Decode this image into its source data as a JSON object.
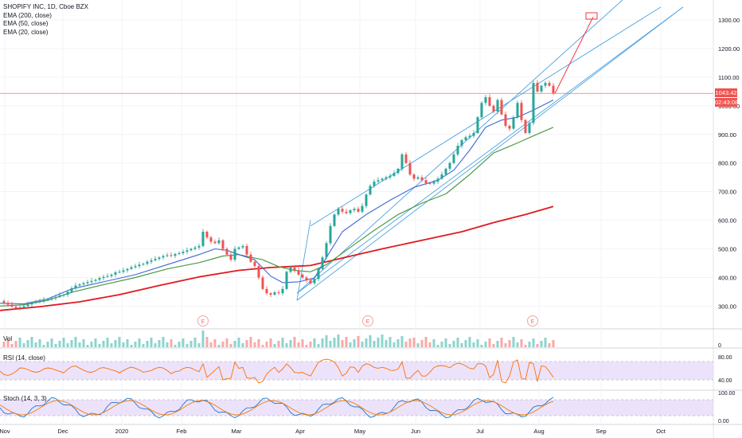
{
  "legend": {
    "symbol": "SHOPIFY INC, 1D, Cboe BZX",
    "ema200": "EMA (200, close)",
    "ema50": "EMA (50, close)",
    "ema20": "EMA (20, close)"
  },
  "price_tag": "1043.42",
  "countdown_tag": "02:43:08",
  "earnings_marker": "E",
  "panes": {
    "vol": "Vol",
    "rsi": "RSI (14, close)",
    "stoch": "Stoch (14, 3, 3)"
  },
  "colors": {
    "up": "#26a69a",
    "down": "#ef5350",
    "ema200": "#e0191f",
    "ema50": "#4c9a45",
    "ema20": "#3f66d6",
    "channel": "#4ea3de",
    "forecast": "#f23645",
    "rsi": "#ff6d00",
    "band": "#d9c8f7",
    "stoch_k": "#1f77d0",
    "stoch_d": "#f57c00"
  },
  "chart_data": {
    "type": "candlestick",
    "title": "SHOPIFY INC, 1D, Cboe BZX",
    "x": [
      "Nov",
      "Dec",
      "2020",
      "Feb",
      "Mar",
      "Apr",
      "May",
      "Jun",
      "Jul",
      "Aug",
      "Sep",
      "Oct"
    ],
    "y_ticks": [
      "1300.00",
      "1200.00",
      "1100.00",
      "1000.00",
      "900.00",
      "800.00",
      "700.00",
      "600.00",
      "500.00",
      "400.00",
      "300.00"
    ],
    "ylim": [
      235,
      1345
    ],
    "last_price": 1043.42,
    "price_path": [
      [
        0,
        318
      ],
      [
        5,
        312
      ],
      [
        10,
        305
      ],
      [
        15,
        298
      ],
      [
        20,
        293
      ],
      [
        25,
        296
      ],
      [
        30,
        300
      ],
      [
        35,
        306
      ],
      [
        40,
        312
      ],
      [
        45,
        316
      ],
      [
        50,
        318
      ],
      [
        55,
        322
      ],
      [
        60,
        325
      ],
      [
        65,
        328
      ],
      [
        70,
        332
      ],
      [
        75,
        338
      ],
      [
        80,
        340
      ],
      [
        85,
        350
      ],
      [
        90,
        362
      ],
      [
        95,
        372
      ],
      [
        100,
        376
      ],
      [
        105,
        380
      ],
      [
        110,
        384
      ],
      [
        115,
        388
      ],
      [
        120,
        392
      ],
      [
        125,
        398
      ],
      [
        130,
        402
      ],
      [
        135,
        405
      ],
      [
        140,
        410
      ],
      [
        145,
        418
      ],
      [
        150,
        420
      ],
      [
        155,
        425
      ],
      [
        160,
        430
      ],
      [
        165,
        436
      ],
      [
        170,
        440
      ],
      [
        175,
        445
      ],
      [
        180,
        448
      ],
      [
        185,
        455
      ],
      [
        190,
        460
      ],
      [
        195,
        465
      ],
      [
        200,
        470
      ],
      [
        205,
        475
      ],
      [
        210,
        478
      ],
      [
        215,
        476
      ],
      [
        220,
        482
      ],
      [
        225,
        485
      ],
      [
        230,
        490
      ],
      [
        235,
        495
      ],
      [
        240,
        500
      ],
      [
        245,
        505
      ],
      [
        250,
        510
      ],
      [
        255,
        560
      ],
      [
        260,
        540
      ],
      [
        265,
        525
      ],
      [
        270,
        520
      ],
      [
        275,
        530
      ],
      [
        280,
        500
      ],
      [
        285,
        480
      ],
      [
        290,
        462
      ],
      [
        295,
        500
      ],
      [
        300,
        505
      ],
      [
        305,
        510
      ],
      [
        310,
        480
      ],
      [
        315,
        455
      ],
      [
        320,
        440
      ],
      [
        325,
        400
      ],
      [
        330,
        360
      ],
      [
        335,
        345
      ],
      [
        340,
        340
      ],
      [
        345,
        348
      ],
      [
        350,
        345
      ],
      [
        355,
        360
      ],
      [
        360,
        420
      ],
      [
        365,
        435
      ],
      [
        370,
        425
      ],
      [
        375,
        410
      ],
      [
        380,
        400
      ],
      [
        385,
        390
      ],
      [
        390,
        380
      ],
      [
        395,
        395
      ],
      [
        400,
        430
      ],
      [
        405,
        470
      ],
      [
        410,
        520
      ],
      [
        415,
        580
      ],
      [
        420,
        620
      ],
      [
        425,
        640
      ],
      [
        430,
        630
      ],
      [
        435,
        625
      ],
      [
        440,
        635
      ],
      [
        445,
        640
      ],
      [
        450,
        630
      ],
      [
        455,
        650
      ],
      [
        460,
        690
      ],
      [
        465,
        720
      ],
      [
        470,
        735
      ],
      [
        475,
        740
      ],
      [
        480,
        745
      ],
      [
        485,
        750
      ],
      [
        490,
        755
      ],
      [
        495,
        765
      ],
      [
        500,
        780
      ],
      [
        505,
        830
      ],
      [
        510,
        800
      ],
      [
        515,
        760
      ],
      [
        520,
        745
      ],
      [
        525,
        750
      ],
      [
        530,
        740
      ],
      [
        535,
        730
      ],
      [
        540,
        728
      ],
      [
        545,
        735
      ],
      [
        550,
        745
      ],
      [
        555,
        760
      ],
      [
        560,
        780
      ],
      [
        565,
        800
      ],
      [
        570,
        830
      ],
      [
        575,
        860
      ],
      [
        580,
        880
      ],
      [
        585,
        890
      ],
      [
        590,
        895
      ],
      [
        595,
        905
      ],
      [
        600,
        960
      ],
      [
        605,
        1010
      ],
      [
        610,
        1030
      ],
      [
        615,
        1000
      ],
      [
        620,
        980
      ],
      [
        625,
        1020
      ],
      [
        630,
        970
      ],
      [
        635,
        930
      ],
      [
        640,
        920
      ],
      [
        645,
        960
      ],
      [
        650,
        1010
      ],
      [
        655,
        950
      ],
      [
        660,
        905
      ],
      [
        665,
        940
      ],
      [
        670,
        1080
      ],
      [
        675,
        1050
      ],
      [
        680,
        1070
      ],
      [
        685,
        1080
      ],
      [
        690,
        1070
      ],
      [
        695,
        1043
      ]
    ],
    "series": [
      {
        "name": "EMA (200, close)",
        "points": [
          [
            0,
            285
          ],
          [
            50,
            298
          ],
          [
            100,
            315
          ],
          [
            150,
            340
          ],
          [
            200,
            372
          ],
          [
            250,
            402
          ],
          [
            300,
            425
          ],
          [
            340,
            435
          ],
          [
            390,
            442
          ],
          [
            430,
            468
          ],
          [
            480,
            500
          ],
          [
            530,
            530
          ],
          [
            580,
            560
          ],
          [
            620,
            592
          ],
          [
            660,
            620
          ],
          [
            695,
            648
          ]
        ]
      },
      {
        "name": "EMA (50, close)",
        "points": [
          [
            0,
            300
          ],
          [
            30,
            305
          ],
          [
            60,
            320
          ],
          [
            90,
            348
          ],
          [
            130,
            375
          ],
          [
            170,
            400
          ],
          [
            210,
            430
          ],
          [
            250,
            452
          ],
          [
            280,
            475
          ],
          [
            300,
            480
          ],
          [
            330,
            462
          ],
          [
            350,
            438
          ],
          [
            370,
            425
          ],
          [
            390,
            420
          ],
          [
            410,
            445
          ],
          [
            440,
            505
          ],
          [
            470,
            565
          ],
          [
            500,
            620
          ],
          [
            530,
            660
          ],
          [
            560,
            692
          ],
          [
            590,
            760
          ],
          [
            620,
            835
          ],
          [
            650,
            870
          ],
          [
            670,
            895
          ],
          [
            695,
            925
          ]
        ]
      },
      {
        "name": "EMA (20, close)",
        "points": [
          [
            0,
            310
          ],
          [
            30,
            308
          ],
          [
            60,
            325
          ],
          [
            90,
            360
          ],
          [
            130,
            385
          ],
          [
            170,
            410
          ],
          [
            210,
            445
          ],
          [
            250,
            480
          ],
          [
            270,
            500
          ],
          [
            285,
            495
          ],
          [
            300,
            480
          ],
          [
            320,
            462
          ],
          [
            340,
            405
          ],
          [
            355,
            382
          ],
          [
            375,
            385
          ],
          [
            395,
            398
          ],
          [
            410,
            470
          ],
          [
            430,
            560
          ],
          [
            460,
            620
          ],
          [
            490,
            670
          ],
          [
            520,
            715
          ],
          [
            550,
            740
          ],
          [
            570,
            775
          ],
          [
            590,
            845
          ],
          [
            610,
            925
          ],
          [
            630,
            950
          ],
          [
            650,
            960
          ],
          [
            670,
            985
          ],
          [
            695,
            1020
          ]
        ]
      }
    ],
    "earnings": [
      "E",
      "E",
      "E"
    ]
  }
}
